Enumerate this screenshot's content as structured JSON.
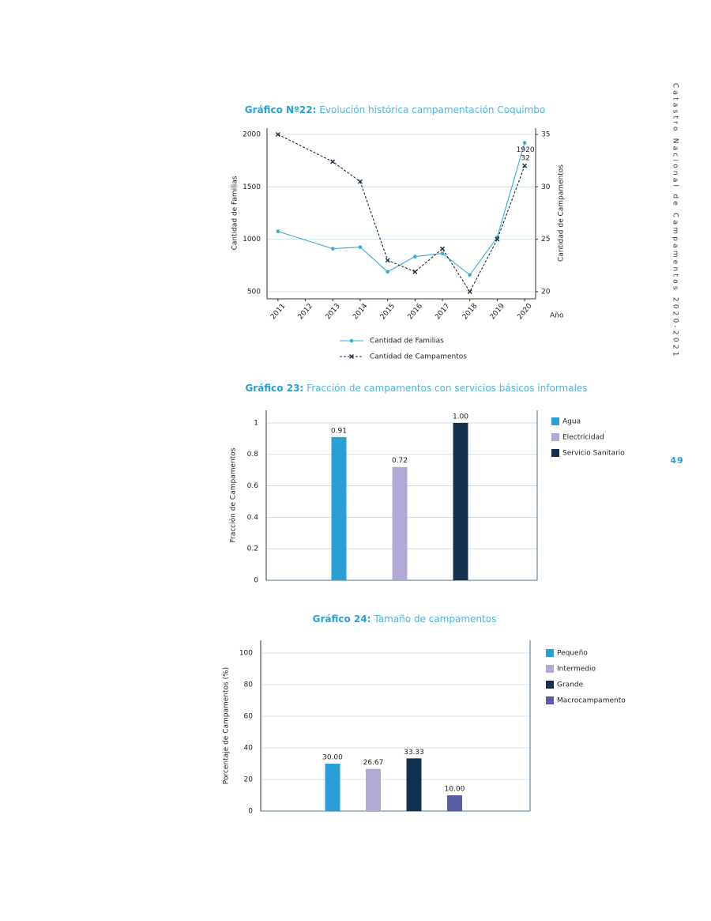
{
  "header": "Catastro Nacional de Campamentos 2020-2021",
  "page_number": "49",
  "chart_data": [
    {
      "type": "line",
      "title_label": "Gráfico Nº22:",
      "title": "Evolución histórica campamentación Coquimbo",
      "x_label": "Año",
      "y_label": "Cantidad de Familias",
      "y2_label": "Cantidad de Campamentos",
      "x": [
        2011,
        2013,
        2014,
        2015,
        2016,
        2017,
        2018,
        2019,
        2020
      ],
      "xlim": [
        2010.6,
        2020.4
      ],
      "xticks": [
        2011,
        2012,
        2013,
        2014,
        2015,
        2016,
        2017,
        2018,
        2019,
        2020
      ],
      "ylim": [
        500,
        2000
      ],
      "yticks": [
        500,
        1000,
        1500,
        2000
      ],
      "y2lim": [
        20,
        35
      ],
      "y2ticks": [
        20,
        25,
        30,
        35
      ],
      "grid": true,
      "series": [
        {
          "name": "Cantidad de Familias",
          "color": "#3aa9d6",
          "style": "solid",
          "marker": "circle",
          "values": [
            1075,
            910,
            925,
            690,
            835,
            865,
            660,
            1020,
            1920
          ],
          "value_labels": [
            null,
            null,
            null,
            null,
            null,
            null,
            null,
            null,
            "1920"
          ]
        },
        {
          "name": "Cantidad de Campamentos",
          "color": "#1e2b40",
          "style": "dashed",
          "marker": "x",
          "axis": "y2",
          "values": [
            35,
            32.4,
            30.5,
            23,
            21.9,
            24.1,
            20,
            25,
            32
          ],
          "value_labels": [
            null,
            null,
            null,
            null,
            null,
            null,
            null,
            null,
            "32"
          ]
        }
      ]
    },
    {
      "type": "bar",
      "title_label": "Gráfico 23:",
      "title": "Fracción de campamentos con servicios básicos informales",
      "y_label": "Fracción de Campamentos",
      "ylim": [
        0,
        1.08
      ],
      "yticks": [
        0,
        0.2,
        0.4,
        0.6,
        0.8,
        1
      ],
      "grid": true,
      "series": [
        {
          "name": "Agua",
          "color": "#2a9fd6",
          "values": [
            0.91
          ],
          "value_labels": [
            "0.91"
          ]
        },
        {
          "name": "Electricidad",
          "color": "#b3a9d6",
          "values": [
            0.72
          ],
          "value_labels": [
            "0.72"
          ]
        },
        {
          "name": "Servicio Sanitario",
          "color": "#14304f",
          "values": [
            1
          ],
          "value_labels": [
            "1.00"
          ]
        }
      ]
    },
    {
      "type": "bar",
      "title_label": "Gráfico 24:",
      "title": "Tamaño de campamentos",
      "y_label": "Porcentaje de Campamentos (%)",
      "ylim": [
        0,
        108
      ],
      "yticks": [
        0,
        20,
        40,
        60,
        80,
        100
      ],
      "grid": true,
      "series": [
        {
          "name": "Pequeño",
          "color": "#2a9fd6",
          "values": [
            30
          ],
          "value_labels": [
            "30.00"
          ]
        },
        {
          "name": "Intermedio",
          "color": "#b3a9d6",
          "values": [
            26.67
          ],
          "value_labels": [
            "26.67"
          ]
        },
        {
          "name": "Grande",
          "color": "#14304f",
          "values": [
            33.33
          ],
          "value_labels": [
            "33.33"
          ]
        },
        {
          "name": "Macrocampamento",
          "color": "#5b5ba3",
          "values": [
            10
          ],
          "value_labels": [
            "10.00"
          ]
        }
      ]
    }
  ]
}
